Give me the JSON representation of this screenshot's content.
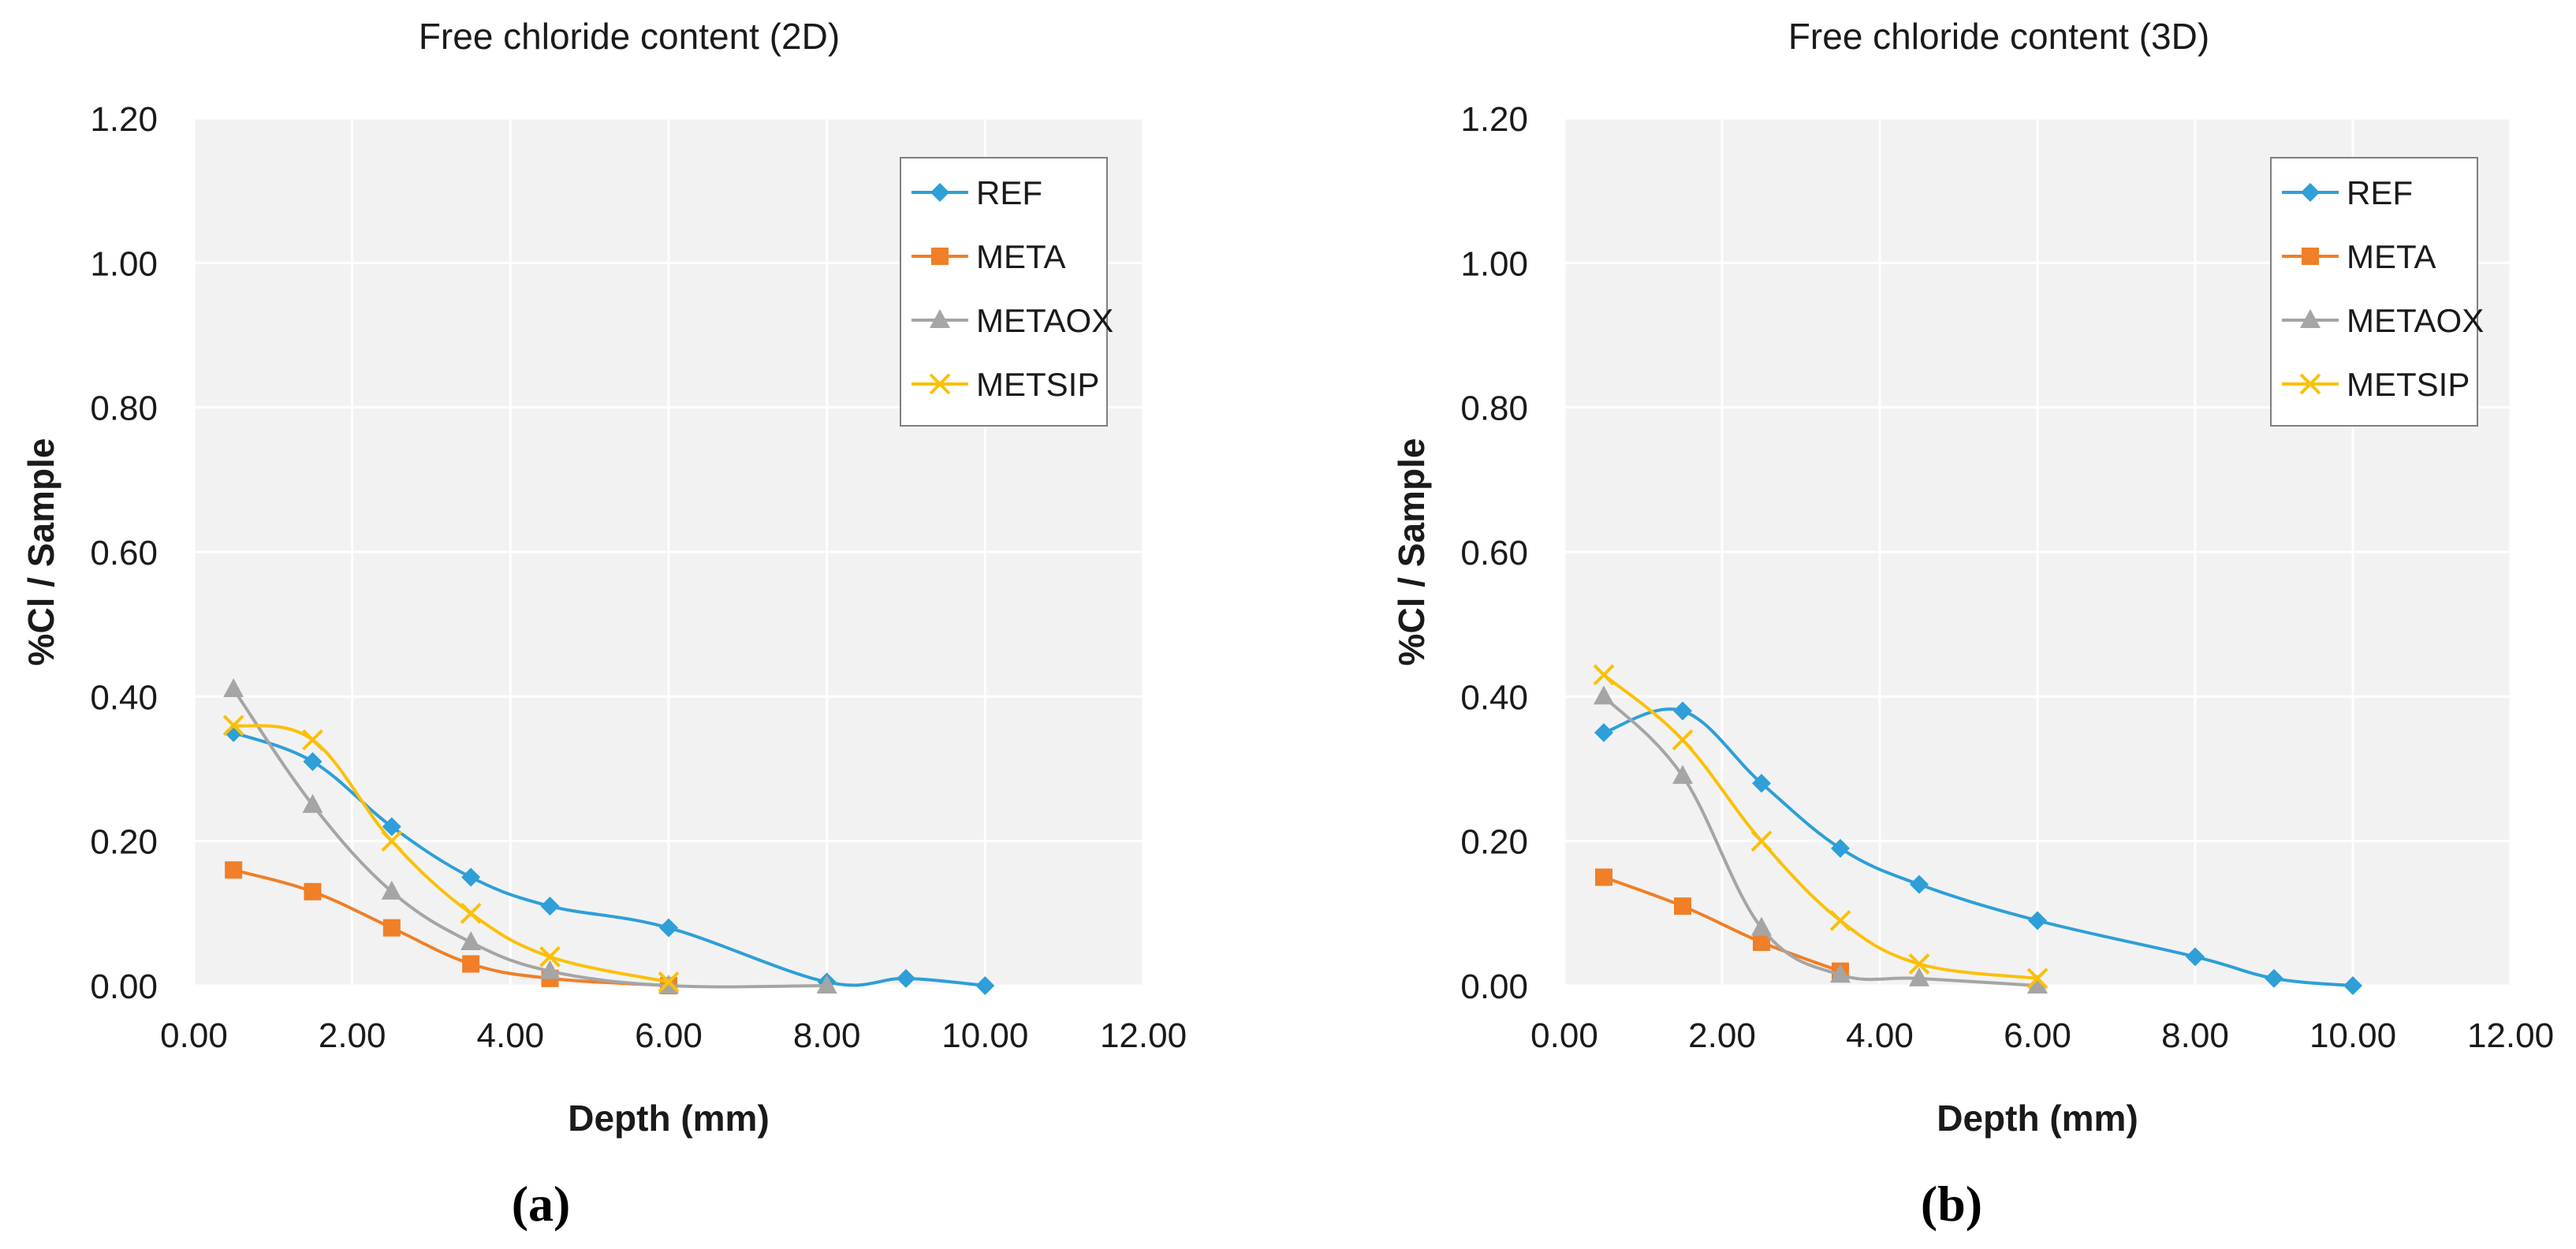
{
  "colors": {
    "plot_bg": "#f2f2f2",
    "grid": "#ffffff",
    "text": "#1a1a1a",
    "legend_border": "#7f7f7f"
  },
  "chart_data": [
    {
      "type": "line",
      "title": "Free chloride content (2D)",
      "panel_label": "(a)",
      "xlabel": "Depth (mm)",
      "ylabel": "%Cl / Sample",
      "xlim": [
        0,
        12
      ],
      "ylim": [
        0,
        1.2
      ],
      "xticks": [
        "0.00",
        "2.00",
        "4.00",
        "6.00",
        "8.00",
        "10.00",
        "12.00"
      ],
      "yticks": [
        "0.00",
        "0.20",
        "0.40",
        "0.60",
        "0.80",
        "1.00",
        "1.20"
      ],
      "legend_position": "top-right",
      "smooth": true,
      "series": [
        {
          "name": "REF",
          "color": "#2e9fd8",
          "marker": "diamond",
          "x": [
            0.5,
            1.5,
            2.5,
            3.5,
            4.5,
            6.0,
            8.0,
            9.0,
            10.0
          ],
          "y": [
            0.35,
            0.31,
            0.22,
            0.15,
            0.11,
            0.08,
            0.005,
            0.01,
            0.0
          ]
        },
        {
          "name": "META",
          "color": "#f07f27",
          "marker": "square",
          "x": [
            0.5,
            1.5,
            2.5,
            3.5,
            4.5,
            6.0
          ],
          "y": [
            0.16,
            0.13,
            0.08,
            0.03,
            0.01,
            0.0
          ]
        },
        {
          "name": "METAOX",
          "color": "#a5a5a5",
          "marker": "triangle",
          "x": [
            0.5,
            1.5,
            2.5,
            3.5,
            4.5,
            6.0,
            8.0
          ],
          "y": [
            0.41,
            0.25,
            0.13,
            0.06,
            0.02,
            0.0,
            0.0
          ]
        },
        {
          "name": "METSIP",
          "color": "#fbc009",
          "marker": "x",
          "x": [
            0.5,
            1.5,
            2.5,
            3.5,
            4.5,
            6.0
          ],
          "y": [
            0.36,
            0.34,
            0.2,
            0.1,
            0.04,
            0.005
          ]
        }
      ]
    },
    {
      "type": "line",
      "title": "Free chloride content (3D)",
      "panel_label": "(b)",
      "xlabel": "Depth (mm)",
      "ylabel": "%Cl / Sample",
      "xlim": [
        0,
        12
      ],
      "ylim": [
        0,
        1.2
      ],
      "xticks": [
        "0.00",
        "2.00",
        "4.00",
        "6.00",
        "8.00",
        "10.00",
        "12.00"
      ],
      "yticks": [
        "0.00",
        "0.20",
        "0.40",
        "0.60",
        "0.80",
        "1.00",
        "1.20"
      ],
      "legend_position": "top-right",
      "smooth": true,
      "series": [
        {
          "name": "REF",
          "color": "#2e9fd8",
          "marker": "diamond",
          "x": [
            0.5,
            1.5,
            2.5,
            3.5,
            4.5,
            6.0,
            8.0,
            9.0,
            10.0
          ],
          "y": [
            0.35,
            0.38,
            0.28,
            0.19,
            0.14,
            0.09,
            0.04,
            0.01,
            0.0
          ]
        },
        {
          "name": "META",
          "color": "#f07f27",
          "marker": "square",
          "x": [
            0.5,
            1.5,
            2.5,
            3.5
          ],
          "y": [
            0.15,
            0.11,
            0.06,
            0.02
          ]
        },
        {
          "name": "METAOX",
          "color": "#a5a5a5",
          "marker": "triangle",
          "x": [
            0.5,
            1.5,
            2.5,
            3.5,
            4.5,
            6.0
          ],
          "y": [
            0.4,
            0.29,
            0.08,
            0.015,
            0.01,
            0.0
          ]
        },
        {
          "name": "METSIP",
          "color": "#fbc009",
          "marker": "x",
          "x": [
            0.5,
            1.5,
            2.5,
            3.5,
            4.5,
            6.0
          ],
          "y": [
            0.43,
            0.34,
            0.2,
            0.09,
            0.03,
            0.01
          ]
        }
      ]
    }
  ]
}
